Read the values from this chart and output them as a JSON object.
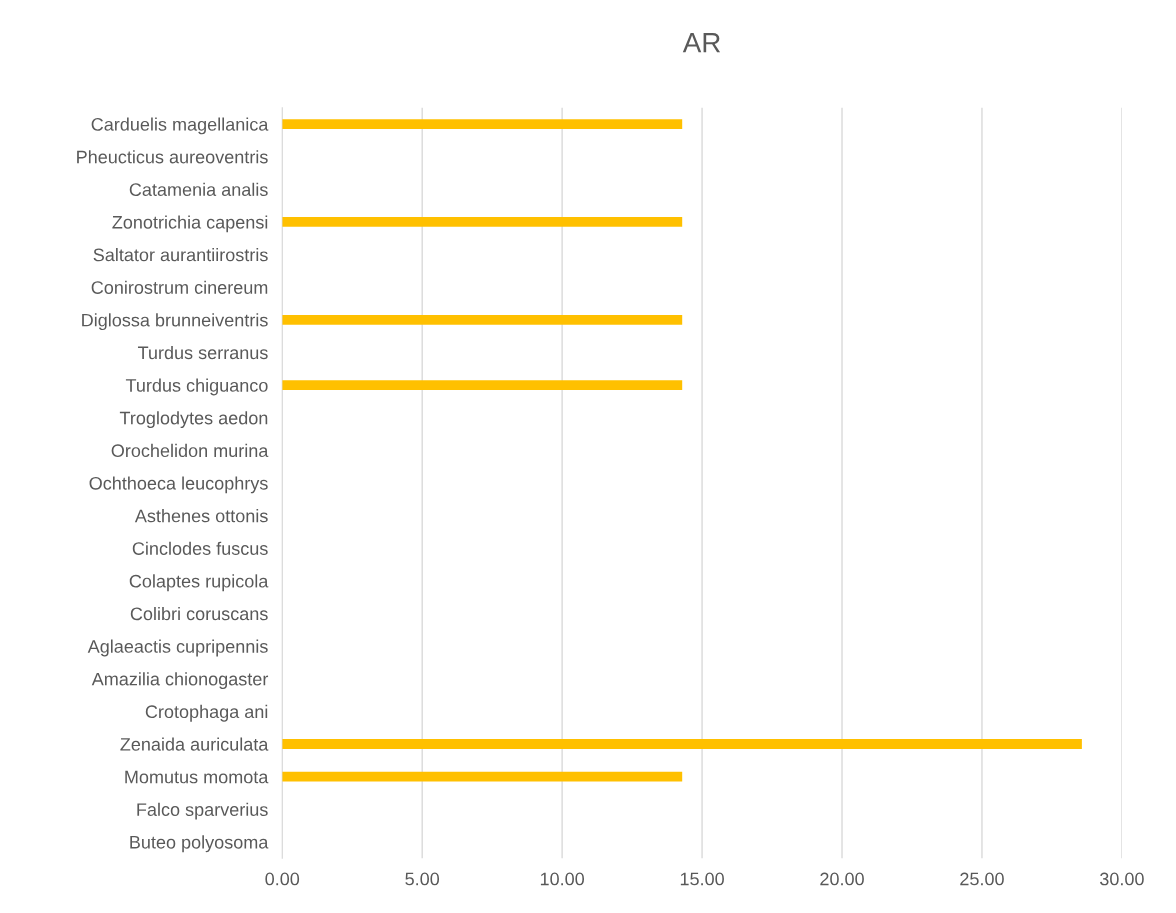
{
  "chart_data": {
    "type": "bar",
    "orientation": "horizontal",
    "title": "AR",
    "categories": [
      "Carduelis magellanica",
      "Pheucticus aureoventris",
      "Catamenia analis",
      "Zonotrichia capensi",
      "Saltator aurantiirostris",
      "Conirostrum cinereum",
      "Diglossa brunneiventris",
      "Turdus serranus",
      "Turdus chiguanco",
      "Troglodytes aedon",
      "Orochelidon murina",
      "Ochthoeca leucophrys",
      "Asthenes ottonis",
      "Cinclodes fuscus",
      "Colaptes rupicola",
      "Colibri coruscans",
      "Aglaeactis cupripennis",
      "Amazilia chionogaster",
      "Crotophaga ani",
      "Zenaida auriculata",
      "Momutus momota",
      "Falco sparverius",
      "Buteo polyosoma"
    ],
    "values": [
      14.29,
      0,
      0,
      14.29,
      0,
      0,
      14.29,
      0,
      14.29,
      0,
      0,
      0,
      0,
      0,
      0,
      0,
      0,
      0,
      0,
      28.57,
      14.29,
      0,
      0
    ],
    "color": "#ffc000",
    "xlim": [
      0,
      30
    ],
    "xticks": [
      {
        "value": 0,
        "label": "0.00"
      },
      {
        "value": 5,
        "label": "5.00"
      },
      {
        "value": 10,
        "label": "10.00"
      },
      {
        "value": 15,
        "label": "15.00"
      },
      {
        "value": 20,
        "label": "20.00"
      },
      {
        "value": 25,
        "label": "25.00"
      },
      {
        "value": 30,
        "label": "30.00"
      }
    ],
    "grid": "x"
  }
}
